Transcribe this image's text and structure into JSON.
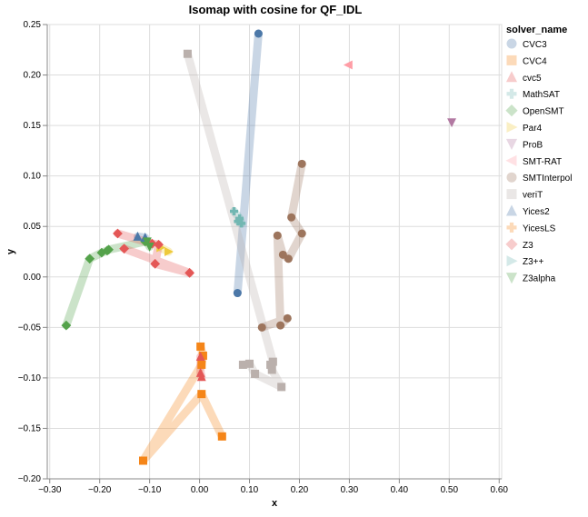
{
  "chart_data": {
    "type": "scatter",
    "title": "Isomap with cosine for QF_IDL",
    "xlabel": "x",
    "ylabel": "y",
    "xlim": [
      -0.305,
      0.605
    ],
    "ylim": [
      -0.2,
      0.25
    ],
    "xticks": [
      "−0.30",
      "−0.20",
      "−0.10",
      "0.00",
      "0.10",
      "0.20",
      "0.30",
      "0.40",
      "0.50",
      "0.60"
    ],
    "xtick_values": [
      -0.3,
      -0.2,
      -0.1,
      0,
      0.1,
      0.2,
      0.3,
      0.4,
      0.5,
      0.6
    ],
    "yticks": [
      "−0.20",
      "−0.15",
      "−0.10",
      "−0.05",
      "0.00",
      "0.05",
      "0.10",
      "0.15",
      "0.20",
      "0.25"
    ],
    "ytick_values": [
      -0.2,
      -0.15,
      -0.1,
      -0.05,
      0,
      0.05,
      0.1,
      0.15,
      0.2,
      0.25
    ],
    "grid": true,
    "legend_title": "solver_name",
    "legend_position": "right",
    "series": [
      {
        "name": "CVC3",
        "color": "#4c78a8",
        "shape": "circle",
        "points": [
          [
            0.118,
            0.241
          ],
          [
            0.076,
            -0.016
          ]
        ]
      },
      {
        "name": "CVC4",
        "color": "#f58518",
        "shape": "square",
        "points": [
          [
            0.002,
            -0.069
          ],
          [
            0.007,
            -0.078
          ],
          [
            0.004,
            -0.087
          ],
          [
            -0.113,
            -0.182
          ],
          [
            0.004,
            -0.116
          ],
          [
            0.045,
            -0.158
          ]
        ]
      },
      {
        "name": "cvc5",
        "color": "#e45756",
        "shape": "triangle-up",
        "points": [
          [
            0.002,
            -0.079
          ],
          [
            0.002,
            -0.095
          ],
          [
            0.004,
            -0.099
          ]
        ]
      },
      {
        "name": "MathSAT",
        "color": "#72b7b2",
        "shape": "cross",
        "points": [
          [
            0.069,
            0.065
          ],
          [
            0.08,
            0.058
          ],
          [
            0.084,
            0.053
          ],
          [
            0.077,
            0.055
          ]
        ]
      },
      {
        "name": "OpenSMT",
        "color": "#54a24b",
        "shape": "diamond",
        "points": [
          [
            -0.267,
            -0.048
          ],
          [
            -0.22,
            0.018
          ],
          [
            -0.196,
            0.024
          ],
          [
            -0.185,
            0.026
          ],
          [
            -0.182,
            0.027
          ],
          [
            -0.109,
            0.035
          ]
        ]
      },
      {
        "name": "Par4",
        "color": "#eeca3b",
        "shape": "triangle-right",
        "points": [
          [
            -0.078,
            0.029
          ],
          [
            -0.062,
            0.025
          ]
        ]
      },
      {
        "name": "ProB",
        "color": "#b279a2",
        "shape": "triangle-down",
        "points": [
          [
            0.505,
            0.153
          ]
        ]
      },
      {
        "name": "SMT-RAT",
        "color": "#ff9da6",
        "shape": "triangle-left",
        "points": [
          [
            0.298,
            0.21
          ]
        ]
      },
      {
        "name": "SMTInterpol",
        "color": "#9d755d",
        "shape": "circle",
        "points": [
          [
            0.205,
            0.112
          ],
          [
            0.184,
            0.059
          ],
          [
            0.205,
            0.043
          ],
          [
            0.178,
            0.018
          ],
          [
            0.167,
            0.022
          ],
          [
            0.156,
            0.041
          ],
          [
            0.162,
            -0.048
          ],
          [
            0.176,
            -0.041
          ],
          [
            0.125,
            -0.05
          ]
        ]
      },
      {
        "name": "veriT",
        "color": "#bab0ac",
        "shape": "square",
        "points": [
          [
            -0.024,
            0.221
          ],
          [
            0.147,
            -0.084
          ],
          [
            0.142,
            -0.087
          ],
          [
            0.145,
            -0.092
          ],
          [
            0.164,
            -0.109
          ],
          [
            0.111,
            -0.096
          ],
          [
            0.1,
            -0.086
          ],
          [
            0.087,
            -0.087
          ]
        ]
      },
      {
        "name": "Yices2",
        "color": "#4c78a8",
        "shape": "triangle-up",
        "points": [
          [
            -0.124,
            0.04
          ],
          [
            -0.109,
            0.039
          ]
        ]
      },
      {
        "name": "YicesLS",
        "color": "#f58518",
        "shape": "cross",
        "points": []
      },
      {
        "name": "Z3",
        "color": "#e45756",
        "shape": "diamond",
        "points": [
          [
            -0.164,
            0.043
          ],
          [
            -0.095,
            0.033
          ],
          [
            -0.082,
            0.032
          ],
          [
            -0.089,
            0.013
          ],
          [
            -0.02,
            0.004
          ],
          [
            -0.151,
            0.028
          ]
        ]
      },
      {
        "name": "Z3++",
        "color": "#72b7b2",
        "shape": "triangle-right",
        "points": []
      },
      {
        "name": "Z3alpha",
        "color": "#54a24b",
        "shape": "triangle-down",
        "points": [
          [
            -0.105,
            0.035
          ],
          [
            -0.1,
            0.03
          ]
        ]
      }
    ]
  }
}
